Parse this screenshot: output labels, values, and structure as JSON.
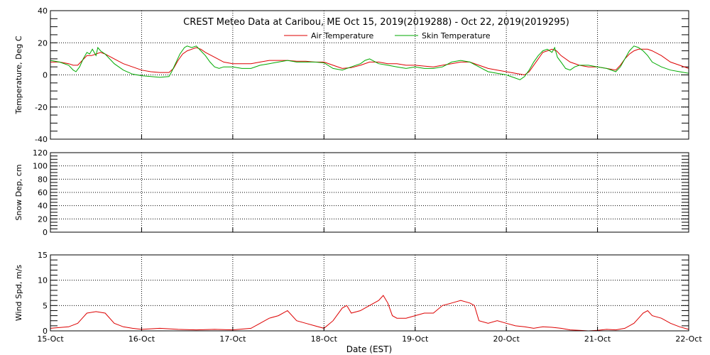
{
  "chart_data": [
    {
      "type": "line",
      "title": "CREST Meteo Data at Caribou, ME   Oct 15, 2019(2019288) - Oct 22, 2019(2019295)",
      "ylabel": "Temperature, Deg C",
      "xlabel": "",
      "xlim": [
        0,
        7
      ],
      "ylim": [
        -40,
        40
      ],
      "yticks": [
        "40",
        "20",
        "0",
        "-20",
        "-40"
      ],
      "grid": true,
      "legend": "top-center",
      "series": [
        {
          "name": "Air Temperature",
          "color": "#dd0000",
          "points": [
            [
              0,
              8
            ],
            [
              0.1,
              8
            ],
            [
              0.2,
              7
            ],
            [
              0.25,
              6
            ],
            [
              0.3,
              6
            ],
            [
              0.35,
              9
            ],
            [
              0.4,
              12
            ],
            [
              0.45,
              12
            ],
            [
              0.5,
              13
            ],
            [
              0.55,
              14
            ],
            [
              0.6,
              13
            ],
            [
              0.7,
              10
            ],
            [
              0.8,
              7
            ],
            [
              0.9,
              5
            ],
            [
              1.0,
              3
            ],
            [
              1.1,
              2
            ],
            [
              1.2,
              1.5
            ],
            [
              1.3,
              1.5
            ],
            [
              1.35,
              4
            ],
            [
              1.4,
              9
            ],
            [
              1.45,
              13
            ],
            [
              1.5,
              15
            ],
            [
              1.55,
              16
            ],
            [
              1.6,
              17
            ],
            [
              1.65,
              16
            ],
            [
              1.7,
              14
            ],
            [
              1.8,
              11
            ],
            [
              1.9,
              8
            ],
            [
              2.0,
              7
            ],
            [
              2.1,
              7
            ],
            [
              2.2,
              7
            ],
            [
              2.3,
              8
            ],
            [
              2.4,
              9
            ],
            [
              2.5,
              9
            ],
            [
              2.6,
              9
            ],
            [
              2.7,
              8.5
            ],
            [
              2.8,
              8.5
            ],
            [
              2.9,
              8
            ],
            [
              3.0,
              8
            ],
            [
              3.1,
              6
            ],
            [
              3.2,
              4
            ],
            [
              3.3,
              4.5
            ],
            [
              3.4,
              6
            ],
            [
              3.5,
              8
            ],
            [
              3.6,
              8
            ],
            [
              3.7,
              7
            ],
            [
              3.8,
              7
            ],
            [
              3.9,
              6
            ],
            [
              4.0,
              6
            ],
            [
              4.1,
              5.5
            ],
            [
              4.2,
              5
            ],
            [
              4.3,
              6
            ],
            [
              4.4,
              7
            ],
            [
              4.5,
              8
            ],
            [
              4.6,
              8
            ],
            [
              4.7,
              6
            ],
            [
              4.8,
              4
            ],
            [
              4.9,
              3
            ],
            [
              5.0,
              2
            ],
            [
              5.1,
              1
            ],
            [
              5.2,
              0
            ],
            [
              5.25,
              2
            ],
            [
              5.3,
              6
            ],
            [
              5.35,
              10
            ],
            [
              5.4,
              14
            ],
            [
              5.45,
              15
            ],
            [
              5.5,
              16
            ],
            [
              5.55,
              15
            ],
            [
              5.6,
              12
            ],
            [
              5.7,
              8
            ],
            [
              5.8,
              6
            ],
            [
              5.9,
              5
            ],
            [
              6.0,
              5
            ],
            [
              6.1,
              4
            ],
            [
              6.2,
              3
            ],
            [
              6.25,
              6
            ],
            [
              6.3,
              10
            ],
            [
              6.35,
              13
            ],
            [
              6.4,
              15
            ],
            [
              6.45,
              16
            ],
            [
              6.5,
              16
            ],
            [
              6.55,
              16
            ],
            [
              6.6,
              15
            ],
            [
              6.7,
              12
            ],
            [
              6.8,
              8
            ],
            [
              6.9,
              6
            ],
            [
              7.0,
              4
            ]
          ]
        },
        {
          "name": "Skin Temperature",
          "color": "#00aa00",
          "points": [
            [
              0,
              9
            ],
            [
              0.1,
              8
            ],
            [
              0.2,
              6
            ],
            [
              0.25,
              3
            ],
            [
              0.28,
              2
            ],
            [
              0.32,
              5
            ],
            [
              0.36,
              10
            ],
            [
              0.4,
              14
            ],
            [
              0.43,
              13
            ],
            [
              0.46,
              16
            ],
            [
              0.5,
              12
            ],
            [
              0.52,
              17
            ],
            [
              0.55,
              15
            ],
            [
              0.6,
              13
            ],
            [
              0.7,
              7
            ],
            [
              0.8,
              3
            ],
            [
              0.9,
              0.5
            ],
            [
              1.0,
              -0.5
            ],
            [
              1.1,
              -1
            ],
            [
              1.2,
              -1.5
            ],
            [
              1.3,
              -1
            ],
            [
              1.33,
              2
            ],
            [
              1.38,
              8
            ],
            [
              1.42,
              13
            ],
            [
              1.47,
              17
            ],
            [
              1.5,
              18
            ],
            [
              1.55,
              17
            ],
            [
              1.6,
              18
            ],
            [
              1.65,
              15
            ],
            [
              1.7,
              12
            ],
            [
              1.75,
              8
            ],
            [
              1.8,
              5
            ],
            [
              1.85,
              4
            ],
            [
              1.9,
              5
            ],
            [
              2.0,
              5
            ],
            [
              2.1,
              4
            ],
            [
              2.2,
              4
            ],
            [
              2.3,
              6
            ],
            [
              2.4,
              7
            ],
            [
              2.5,
              8
            ],
            [
              2.6,
              9
            ],
            [
              2.7,
              8
            ],
            [
              2.8,
              8
            ],
            [
              2.9,
              8
            ],
            [
              3.0,
              7.5
            ],
            [
              3.1,
              4
            ],
            [
              3.2,
              3
            ],
            [
              3.3,
              5
            ],
            [
              3.4,
              7
            ],
            [
              3.45,
              9
            ],
            [
              3.5,
              10
            ],
            [
              3.6,
              7
            ],
            [
              3.7,
              6
            ],
            [
              3.8,
              5
            ],
            [
              3.9,
              4
            ],
            [
              4.0,
              5
            ],
            [
              4.1,
              4
            ],
            [
              4.2,
              4
            ],
            [
              4.3,
              5
            ],
            [
              4.4,
              8
            ],
            [
              4.5,
              9
            ],
            [
              4.6,
              8
            ],
            [
              4.7,
              5
            ],
            [
              4.8,
              2
            ],
            [
              4.9,
              1
            ],
            [
              5.0,
              0
            ],
            [
              5.1,
              -2
            ],
            [
              5.15,
              -3
            ],
            [
              5.2,
              -1
            ],
            [
              5.25,
              3
            ],
            [
              5.3,
              8
            ],
            [
              5.35,
              12
            ],
            [
              5.4,
              15
            ],
            [
              5.45,
              16
            ],
            [
              5.5,
              14
            ],
            [
              5.53,
              17
            ],
            [
              5.56,
              11
            ],
            [
              5.6,
              8
            ],
            [
              5.65,
              4
            ],
            [
              5.7,
              3
            ],
            [
              5.75,
              5
            ],
            [
              5.8,
              6
            ],
            [
              5.9,
              6
            ],
            [
              6.0,
              5
            ],
            [
              6.1,
              4
            ],
            [
              6.2,
              2
            ],
            [
              6.25,
              5
            ],
            [
              6.3,
              10
            ],
            [
              6.35,
              15
            ],
            [
              6.4,
              18
            ],
            [
              6.45,
              17
            ],
            [
              6.5,
              15
            ],
            [
              6.55,
              12
            ],
            [
              6.6,
              8
            ],
            [
              6.7,
              5
            ],
            [
              6.8,
              3
            ],
            [
              6.9,
              2
            ],
            [
              7.0,
              1
            ]
          ]
        }
      ]
    },
    {
      "type": "line",
      "title": "",
      "ylabel": "Snow Dep, cm",
      "xlabel": "",
      "xlim": [
        0,
        7
      ],
      "ylim": [
        0,
        120
      ],
      "yticks": [
        "120",
        "100",
        "80",
        "60",
        "40",
        "20",
        "0"
      ],
      "grid": true,
      "series": []
    },
    {
      "type": "line",
      "title": "",
      "ylabel": "Wind Spd, m/s",
      "xlabel": "Date (EST)",
      "xlim": [
        0,
        7
      ],
      "ylim": [
        0,
        15
      ],
      "yticks": [
        "15",
        "10",
        "5",
        "0"
      ],
      "grid": true,
      "categories": [
        "15-Oct",
        "16-Oct",
        "17-Oct",
        "18-Oct",
        "19-Oct",
        "20-Oct",
        "21-Oct",
        "22-Oct"
      ],
      "series": [
        {
          "name": "",
          "color": "#dd0000",
          "points": [
            [
              0,
              0.5
            ],
            [
              0.2,
              0.8
            ],
            [
              0.3,
              1.5
            ],
            [
              0.35,
              2.5
            ],
            [
              0.4,
              3.5
            ],
            [
              0.5,
              3.8
            ],
            [
              0.6,
              3.5
            ],
            [
              0.7,
              1.5
            ],
            [
              0.8,
              0.8
            ],
            [
              0.9,
              0.5
            ],
            [
              1.0,
              0.3
            ],
            [
              1.2,
              0.5
            ],
            [
              1.4,
              0.3
            ],
            [
              1.6,
              0.2
            ],
            [
              1.8,
              0.3
            ],
            [
              2.0,
              0.2
            ],
            [
              2.2,
              0.5
            ],
            [
              2.3,
              1.5
            ],
            [
              2.4,
              2.5
            ],
            [
              2.5,
              3
            ],
            [
              2.6,
              4
            ],
            [
              2.7,
              2
            ],
            [
              2.8,
              1.5
            ],
            [
              2.9,
              1
            ],
            [
              3.0,
              0.5
            ],
            [
              3.1,
              2
            ],
            [
              3.2,
              4.5
            ],
            [
              3.25,
              5
            ],
            [
              3.3,
              3.5
            ],
            [
              3.4,
              4
            ],
            [
              3.5,
              5
            ],
            [
              3.6,
              6
            ],
            [
              3.65,
              7
            ],
            [
              3.7,
              5.5
            ],
            [
              3.75,
              3
            ],
            [
              3.8,
              2.5
            ],
            [
              3.9,
              2.5
            ],
            [
              4.0,
              3
            ],
            [
              4.1,
              3.5
            ],
            [
              4.2,
              3.5
            ],
            [
              4.3,
              5
            ],
            [
              4.4,
              5.5
            ],
            [
              4.5,
              6
            ],
            [
              4.6,
              5.5
            ],
            [
              4.65,
              5
            ],
            [
              4.7,
              2
            ],
            [
              4.8,
              1.5
            ],
            [
              4.9,
              2
            ],
            [
              5.0,
              1.5
            ],
            [
              5.1,
              1
            ],
            [
              5.2,
              0.8
            ],
            [
              5.3,
              0.5
            ],
            [
              5.4,
              0.8
            ],
            [
              5.5,
              0.7
            ],
            [
              5.6,
              0.5
            ],
            [
              5.7,
              0.2
            ],
            [
              5.8,
              0.1
            ],
            [
              5.9,
              0
            ],
            [
              6.0,
              0.1
            ],
            [
              6.1,
              0.3
            ],
            [
              6.2,
              0.2
            ],
            [
              6.3,
              0.5
            ],
            [
              6.4,
              1.5
            ],
            [
              6.45,
              2.5
            ],
            [
              6.5,
              3.5
            ],
            [
              6.55,
              4
            ],
            [
              6.6,
              3
            ],
            [
              6.7,
              2.5
            ],
            [
              6.8,
              1.5
            ],
            [
              6.9,
              0.8
            ],
            [
              7.0,
              0.3
            ]
          ]
        }
      ]
    }
  ]
}
